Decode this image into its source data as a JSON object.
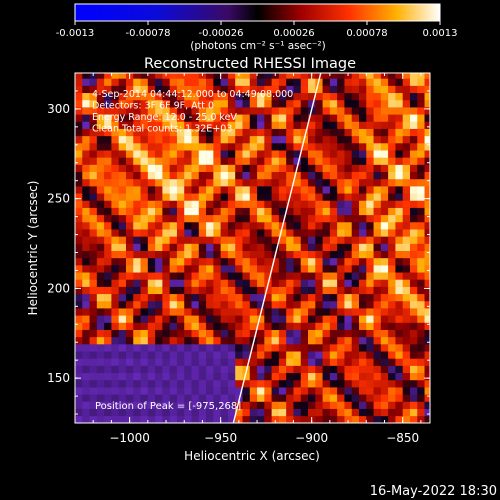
{
  "colorbar": {
    "tick_labels": [
      "-0.0013",
      "-0.00078",
      "-0.00026",
      "0.00026",
      "0.00078",
      "0.0013"
    ],
    "tick_values": [
      -0.0013,
      -0.00078,
      -0.00026,
      0.00026,
      0.00078,
      0.0013
    ],
    "range": [
      -0.0013,
      0.0013
    ],
    "units_label": "(photons cm⁻² s⁻¹ asec⁻²)"
  },
  "timestamp": "16-May-2022 18:30",
  "chart_data": {
    "type": "heatmap",
    "title": "Reconstructed RHESSI Image",
    "xlabel": "Heliocentric X (arcsec)",
    "ylabel": "Heliocentric Y (arcsec)",
    "xlim": [
      -1030,
      -835
    ],
    "ylim": [
      125,
      320
    ],
    "x_ticks": [
      -1000,
      -950,
      -900,
      -850
    ],
    "x_tick_labels": [
      "−1000",
      "−950",
      "−900",
      "−850"
    ],
    "y_ticks": [
      150,
      200,
      250,
      300
    ],
    "y_tick_labels": [
      "150",
      "200",
      "250",
      "300"
    ],
    "annotations": [
      "4-Sep-2014 04:44:12.000 to 04:49:08.000",
      "Detectors: 3F 6F 9F, Att 0",
      "Energy Range: 12.0 - 25.0 keV",
      "Clean    Total counts: 1.32E+03"
    ],
    "peak_label": "Position of Peak = [-975,268]",
    "peak": [
      -975,
      268
    ],
    "limb_line": [
      [
        -943,
        125
      ],
      [
        -895,
        320
      ]
    ],
    "pixel_size_arcsec": 4
  }
}
